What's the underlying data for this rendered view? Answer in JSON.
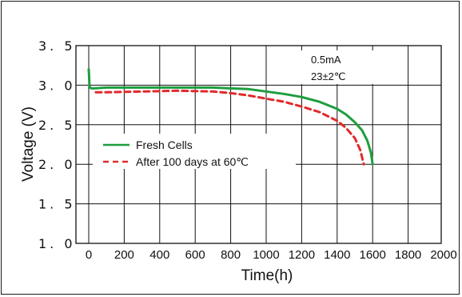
{
  "chart_data": {
    "type": "line",
    "xlabel": "Time(h)",
    "ylabel": "Voltage (V)",
    "xlim": [
      0,
      2000
    ],
    "ylim": [
      1.0,
      3.5
    ],
    "x_ticks": [
      "0",
      "200",
      "400",
      "600",
      "800",
      "1000",
      "1200",
      "1400",
      "1600",
      "1800",
      "2000"
    ],
    "y_ticks": [
      "1. 0",
      "1. 5",
      "2. 0",
      "2. 5",
      "3. 0",
      "3. 5"
    ],
    "grid": true,
    "annotations": [
      "0.5mA",
      "23±2℃"
    ],
    "legend_position": "middle-left",
    "series": [
      {
        "name": "Fresh Cells",
        "color": "#1e9e3e",
        "style": "solid",
        "x": [
          0,
          2,
          4,
          8,
          15,
          30,
          100,
          300,
          500,
          700,
          800,
          900,
          1000,
          1100,
          1200,
          1300,
          1400,
          1450,
          1500,
          1540,
          1570,
          1590,
          1600
        ],
        "y": [
          3.2,
          3.12,
          3.0,
          2.97,
          2.96,
          2.96,
          2.97,
          2.97,
          2.97,
          2.97,
          2.96,
          2.95,
          2.92,
          2.89,
          2.85,
          2.79,
          2.7,
          2.63,
          2.53,
          2.43,
          2.3,
          2.15,
          2.0
        ]
      },
      {
        "name": "After 100 days at 60℃",
        "color": "#e02b2b",
        "style": "dashed",
        "x": [
          40,
          100,
          300,
          500,
          700,
          800,
          900,
          1000,
          1100,
          1200,
          1300,
          1400,
          1450,
          1500,
          1530,
          1550
        ],
        "y": [
          2.91,
          2.91,
          2.92,
          2.93,
          2.92,
          2.9,
          2.87,
          2.83,
          2.79,
          2.73,
          2.66,
          2.55,
          2.46,
          2.33,
          2.18,
          2.0
        ]
      }
    ]
  }
}
